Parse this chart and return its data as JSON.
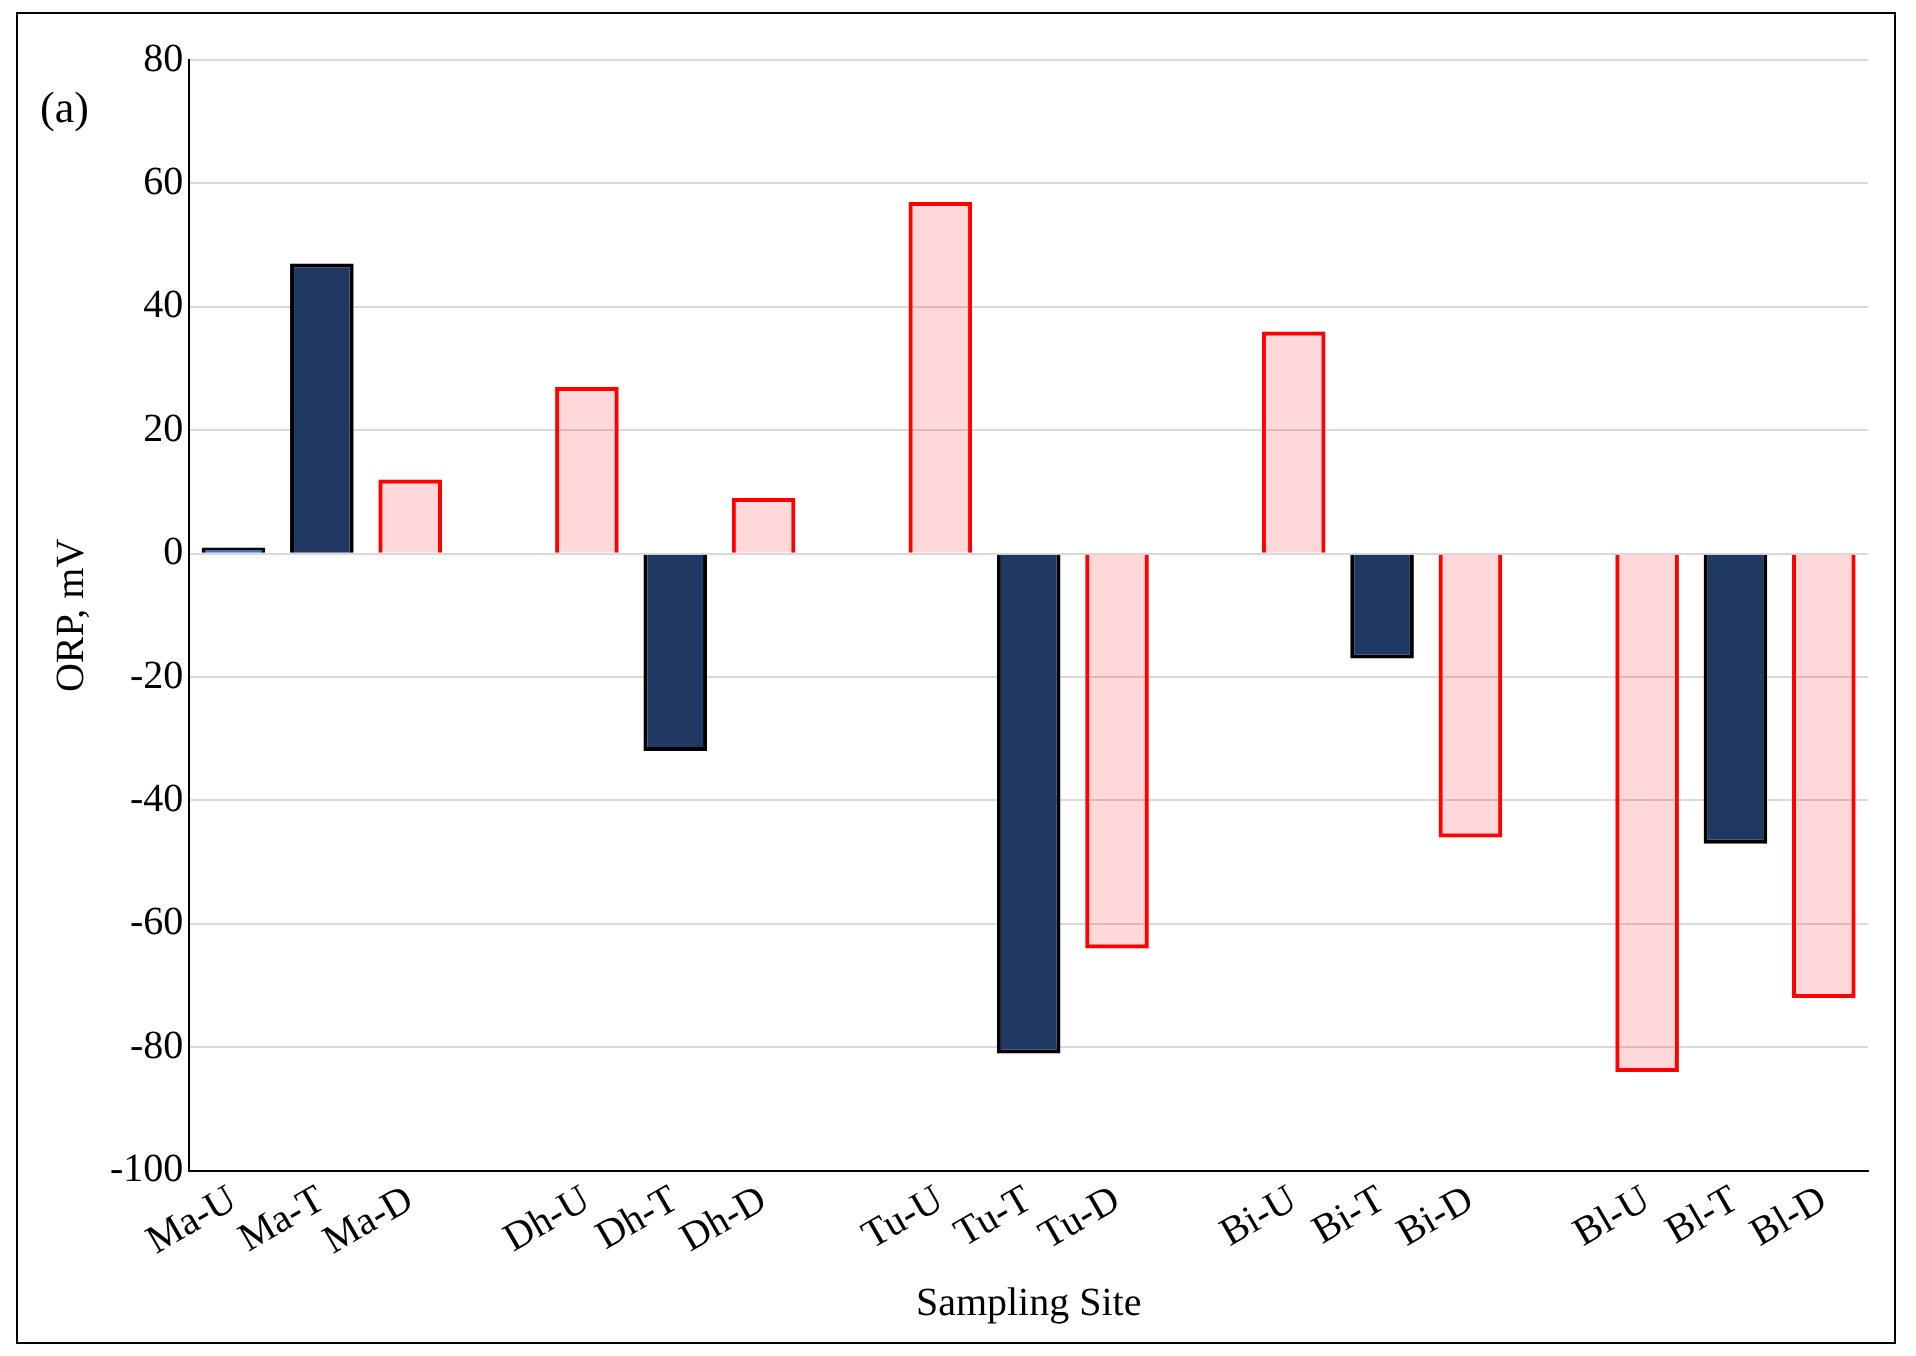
{
  "chart_data": {
    "type": "bar",
    "categories": [
      "Ma-U",
      "Ma-T",
      "Ma-D",
      null,
      "Dh-U",
      "Dh-T",
      "Dh-D",
      null,
      "Tu-U",
      "Tu-T",
      "Tu-D",
      null,
      "Bi-U",
      "Bi-T",
      "Bi-D",
      null,
      "Bl-U",
      "Bl-T",
      "Bl-D"
    ],
    "values": [
      1,
      47,
      12,
      null,
      27,
      -32,
      9,
      null,
      57,
      -81,
      -64,
      null,
      36,
      -17,
      -46,
      null,
      -84,
      -47,
      -72
    ],
    "colors": [
      "#4472c4",
      "#1f3864",
      "#ff0000",
      null,
      "#ff0000",
      "#1f3864",
      "#ff0000",
      null,
      "#ff0000",
      "#1f3864",
      "#ff0000",
      null,
      "#ff0000",
      "#1f3864",
      "#ff0000",
      null,
      "#ff0000",
      "#1f3864",
      "#ff0000"
    ],
    "xlabel": "Sampling Site",
    "ylabel": "ORP, mV",
    "ylim": [
      -100,
      80
    ],
    "yticks": [
      -100,
      -80,
      -60,
      -40,
      -20,
      0,
      20,
      40,
      60,
      80
    ],
    "grid": "y",
    "legend": false,
    "annotations": [
      "(a)"
    ]
  }
}
